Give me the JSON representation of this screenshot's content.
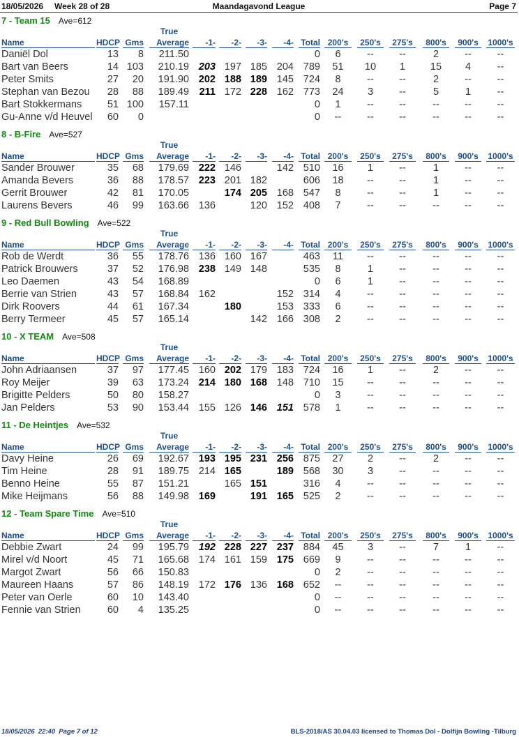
{
  "header": {
    "date": "18/05/2026",
    "week": "Week 28 of 28",
    "title": "Maandagavond League",
    "page": "Page 7"
  },
  "columns": {
    "average_top": "True",
    "labels": [
      "Name",
      "HDCP",
      "Gms",
      "Average",
      "-1-",
      "-2-",
      "-3-",
      "-4-",
      "Total",
      "200's",
      "250's",
      "275's",
      "800's",
      "900's",
      "1000's"
    ]
  },
  "teams": [
    {
      "name": "7 - Team 15",
      "ave": "Ave=612",
      "rows": [
        {
          "cells": [
            "Daniël Dol",
            13,
            8,
            "211.50",
            null,
            null,
            null,
            null,
            0,
            6,
            "--",
            "--",
            2,
            "--",
            "--"
          ]
        },
        {
          "cells": [
            "Bart van Beers",
            14,
            103,
            "210.19",
            203,
            197,
            185,
            204,
            789,
            51,
            10,
            1,
            15,
            4,
            "--"
          ],
          "bold": [
            4
          ],
          "italic": [
            4
          ]
        },
        {
          "cells": [
            "Peter Smits",
            27,
            20,
            "191.90",
            202,
            188,
            189,
            145,
            724,
            8,
            "--",
            "--",
            2,
            "--",
            "--"
          ],
          "bold": [
            4,
            5,
            6
          ]
        },
        {
          "cells": [
            "Stephan van Bezou",
            28,
            88,
            "189.49",
            211,
            172,
            228,
            162,
            773,
            24,
            3,
            "--",
            5,
            1,
            "--"
          ],
          "bold": [
            4,
            6
          ]
        },
        {
          "cells": [
            "Bart Stokkermans",
            51,
            100,
            "157.11",
            null,
            null,
            null,
            null,
            0,
            1,
            "--",
            "--",
            "--",
            "--",
            "--"
          ]
        },
        {
          "cells": [
            "Gu-Anne v/d Heuvel",
            60,
            0,
            null,
            null,
            null,
            null,
            null,
            0,
            "--",
            "--",
            "--",
            "--",
            "--",
            "--"
          ]
        }
      ]
    },
    {
      "name": "8 - B-Fire",
      "ave": "Ave=527",
      "rows": [
        {
          "cells": [
            "Sander Brouwer",
            35,
            68,
            "179.69",
            222,
            146,
            null,
            142,
            510,
            16,
            1,
            "--",
            1,
            "--",
            "--"
          ],
          "bold": [
            4
          ]
        },
        {
          "cells": [
            "Amanda Bevers",
            36,
            88,
            "178.57",
            223,
            201,
            182,
            null,
            606,
            18,
            "--",
            "--",
            1,
            "--",
            "--"
          ],
          "bold": [
            4
          ]
        },
        {
          "cells": [
            "Gerrit Brouwer",
            42,
            81,
            "170.05",
            null,
            174,
            205,
            168,
            547,
            8,
            "--",
            "--",
            1,
            "--",
            "--"
          ],
          "bold": [
            5,
            6
          ]
        },
        {
          "cells": [
            "Laurens Bevers",
            46,
            99,
            "163.66",
            136,
            null,
            120,
            152,
            408,
            7,
            "--",
            "--",
            "--",
            "--",
            "--"
          ]
        }
      ]
    },
    {
      "name": "9 - Red Bull Bowling",
      "ave": "Ave=522",
      "rows": [
        {
          "cells": [
            "Rob de Werdt",
            36,
            55,
            "178.76",
            136,
            160,
            167,
            null,
            463,
            11,
            "--",
            "--",
            "--",
            "--",
            "--"
          ]
        },
        {
          "cells": [
            "Patrick Brouwers",
            37,
            52,
            "176.98",
            238,
            149,
            148,
            null,
            535,
            8,
            1,
            "--",
            "--",
            "--",
            "--"
          ],
          "bold": [
            4
          ]
        },
        {
          "cells": [
            "Leo Daemen",
            43,
            54,
            "168.89",
            null,
            null,
            null,
            null,
            0,
            6,
            1,
            "--",
            "--",
            "--",
            "--"
          ]
        },
        {
          "cells": [
            "Berrie van Strien",
            43,
            57,
            "168.84",
            162,
            null,
            null,
            152,
            314,
            4,
            "--",
            "--",
            "--",
            "--",
            "--"
          ]
        },
        {
          "cells": [
            "Dirk Roovers",
            44,
            61,
            "167.34",
            null,
            180,
            null,
            153,
            333,
            6,
            "--",
            "--",
            "--",
            "--",
            "--"
          ],
          "bold": [
            5
          ]
        },
        {
          "cells": [
            "Berry Termeer",
            45,
            57,
            "165.14",
            null,
            null,
            142,
            166,
            308,
            2,
            "--",
            "--",
            "--",
            "--",
            "--"
          ]
        }
      ]
    },
    {
      "name": "10 - X TEAM",
      "ave": "Ave=508",
      "rows": [
        {
          "cells": [
            "John Adriaansen",
            37,
            97,
            "177.45",
            160,
            202,
            179,
            183,
            724,
            16,
            1,
            "--",
            2,
            "--",
            "--"
          ],
          "bold": [
            5
          ]
        },
        {
          "cells": [
            "Roy Meijer",
            39,
            63,
            "173.24",
            214,
            180,
            168,
            148,
            710,
            15,
            "--",
            "--",
            "--",
            "--",
            "--"
          ],
          "bold": [
            4,
            5,
            6
          ]
        },
        {
          "cells": [
            "Brigitte Pelders",
            50,
            80,
            "158.27",
            null,
            null,
            null,
            null,
            0,
            3,
            "--",
            "--",
            "--",
            "--",
            "--"
          ]
        },
        {
          "cells": [
            "Jan Pelders",
            53,
            90,
            "153.44",
            155,
            126,
            146,
            151,
            578,
            1,
            "--",
            "--",
            "--",
            "--",
            "--"
          ],
          "bold": [
            6,
            7
          ],
          "italic": [
            7
          ]
        }
      ]
    },
    {
      "name": "11 - De Heintjes",
      "ave": "Ave=532",
      "rows": [
        {
          "cells": [
            "Davy Heine",
            26,
            69,
            "192.67",
            193,
            195,
            231,
            256,
            875,
            27,
            2,
            "--",
            2,
            "--",
            "--"
          ],
          "bold": [
            4,
            5,
            6,
            7
          ]
        },
        {
          "cells": [
            "Tim Heine",
            28,
            91,
            "189.75",
            214,
            165,
            null,
            189,
            568,
            30,
            3,
            "--",
            "--",
            "--",
            "--"
          ],
          "bold": [
            5,
            7
          ]
        },
        {
          "cells": [
            "Benno Heine",
            55,
            87,
            "151.21",
            null,
            165,
            151,
            null,
            316,
            4,
            "--",
            "--",
            "--",
            "--",
            "--"
          ],
          "bold": [
            6
          ]
        },
        {
          "cells": [
            "Mike Heijmans",
            56,
            88,
            "149.98",
            169,
            null,
            191,
            165,
            525,
            2,
            "--",
            "--",
            "--",
            "--",
            "--"
          ],
          "bold": [
            4,
            6,
            7
          ]
        }
      ]
    },
    {
      "name": "12 - Team Spare Time",
      "ave": "Ave=510",
      "rows": [
        {
          "cells": [
            "Debbie Zwart",
            24,
            99,
            "195.79",
            192,
            228,
            227,
            237,
            884,
            45,
            3,
            "--",
            7,
            1,
            "--"
          ],
          "bold": [
            4,
            5,
            6,
            7
          ],
          "italic": [
            4
          ]
        },
        {
          "cells": [
            "Mirel v/d Noort",
            45,
            71,
            "165.68",
            174,
            161,
            159,
            175,
            669,
            9,
            "--",
            "--",
            "--",
            "--",
            "--"
          ],
          "bold": [
            7
          ]
        },
        {
          "cells": [
            "Margot Zwart",
            56,
            66,
            "150.83",
            null,
            null,
            null,
            null,
            0,
            2,
            "--",
            "--",
            "--",
            "--",
            "--"
          ]
        },
        {
          "cells": [
            "Maureen Haans",
            57,
            86,
            "148.19",
            172,
            176,
            136,
            168,
            652,
            "--",
            "--",
            "--",
            "--",
            "--",
            "--"
          ],
          "bold": [
            5,
            7
          ]
        },
        {
          "cells": [
            "Peter van Oerle",
            60,
            10,
            "143.40",
            null,
            null,
            null,
            null,
            0,
            "--",
            "--",
            "--",
            "--",
            "--",
            "--"
          ]
        },
        {
          "cells": [
            "Fennie van Strien",
            60,
            4,
            "135.25",
            null,
            null,
            null,
            null,
            0,
            "--",
            "--",
            "--",
            "--",
            "--",
            "--"
          ]
        }
      ]
    }
  ],
  "footer": {
    "left": "18/05/2026  22:40  Page 7 of 12",
    "right": "BLS-2018/AS 30.04.03 licensed to Thomas Dol - Dolfijn Bowling -Tilburg"
  }
}
